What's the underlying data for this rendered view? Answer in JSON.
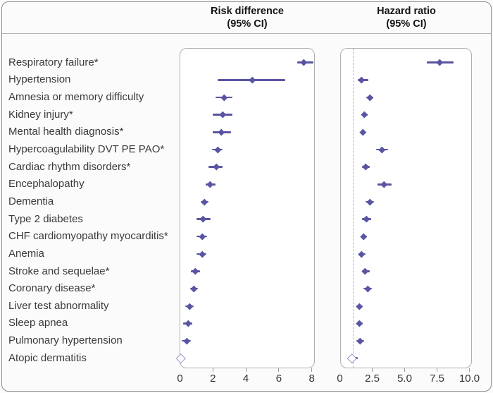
{
  "chart_data": {
    "type": "forest",
    "panels": [
      {
        "key": "rd",
        "title_line1": "Risk difference",
        "title_line2": "(95% CI)",
        "axis_ticks": [
          {
            "label": "0",
            "value": 0
          },
          {
            "label": "2",
            "value": 2
          },
          {
            "label": "4",
            "value": 4
          },
          {
            "label": "6",
            "value": 6
          },
          {
            "label": "8",
            "value": 8
          }
        ],
        "xlim": [
          0,
          8.2
        ],
        "reference_line": null
      },
      {
        "key": "hr",
        "title_line1": "Hazard ratio",
        "title_line2": "(95% CI)",
        "axis_ticks": [
          {
            "label": "0",
            "value": 0
          },
          {
            "label": "2.5",
            "value": 2.5
          },
          {
            "label": "5.0",
            "value": 5
          },
          {
            "label": "7.5",
            "value": 7.5
          },
          {
            "label": "10.0",
            "value": 10
          }
        ],
        "xlim": [
          0,
          10.2
        ],
        "reference_line": 1.0
      }
    ],
    "rows": [
      {
        "label": "Respiratory failure*",
        "rd": {
          "est": 7.5,
          "lo": 7.1,
          "hi": 8.1
        },
        "hr": {
          "est": 7.7,
          "lo": 6.7,
          "hi": 8.8
        },
        "open_marker": false
      },
      {
        "label": "Hypertension",
        "rd": {
          "est": 4.4,
          "lo": 2.3,
          "hi": 6.4
        },
        "hr": {
          "est": 1.7,
          "lo": 1.4,
          "hi": 2.2
        },
        "open_marker": false
      },
      {
        "label": "Amnesia or memory difficulty",
        "rd": {
          "est": 2.7,
          "lo": 2.15,
          "hi": 3.2
        },
        "hr": {
          "est": 2.3,
          "lo": 2.05,
          "hi": 2.6
        },
        "open_marker": false
      },
      {
        "label": "Kidney injury*",
        "rd": {
          "est": 2.6,
          "lo": 2.0,
          "hi": 3.2
        },
        "hr": {
          "est": 1.9,
          "lo": 1.7,
          "hi": 2.15
        },
        "open_marker": false
      },
      {
        "label": "Mental health diagnosis*",
        "rd": {
          "est": 2.5,
          "lo": 2.0,
          "hi": 3.1
        },
        "hr": {
          "est": 1.8,
          "lo": 1.6,
          "hi": 2.0
        },
        "open_marker": false
      },
      {
        "label": "Hypercoagulability DVT PE PAO*",
        "rd": {
          "est": 2.3,
          "lo": 1.95,
          "hi": 2.6
        },
        "hr": {
          "est": 3.25,
          "lo": 2.8,
          "hi": 3.75
        },
        "open_marker": false
      },
      {
        "label": "Cardiac rhythm disorders*",
        "rd": {
          "est": 2.2,
          "lo": 1.75,
          "hi": 2.6
        },
        "hr": {
          "est": 2.0,
          "lo": 1.7,
          "hi": 2.3
        },
        "open_marker": false
      },
      {
        "label": "Encephalopathy",
        "rd": {
          "est": 1.85,
          "lo": 1.55,
          "hi": 2.15
        },
        "hr": {
          "est": 3.4,
          "lo": 2.9,
          "hi": 4.0
        },
        "open_marker": false
      },
      {
        "label": "Dementia",
        "rd": {
          "est": 1.5,
          "lo": 1.25,
          "hi": 1.75
        },
        "hr": {
          "est": 2.35,
          "lo": 2.0,
          "hi": 2.65
        },
        "open_marker": false
      },
      {
        "label": "Type 2 diabetes",
        "rd": {
          "est": 1.4,
          "lo": 1.0,
          "hi": 1.85
        },
        "hr": {
          "est": 2.05,
          "lo": 1.7,
          "hi": 2.4
        },
        "open_marker": false
      },
      {
        "label": "CHF cardiomyopathy myocarditis*",
        "rd": {
          "est": 1.35,
          "lo": 1.0,
          "hi": 1.65
        },
        "hr": {
          "est": 1.85,
          "lo": 1.6,
          "hi": 2.1
        },
        "open_marker": false
      },
      {
        "label": "Anemia",
        "rd": {
          "est": 1.35,
          "lo": 1.0,
          "hi": 1.6
        },
        "hr": {
          "est": 1.7,
          "lo": 1.45,
          "hi": 2.0
        },
        "open_marker": false
      },
      {
        "label": "Stroke and sequelae*",
        "rd": {
          "est": 0.95,
          "lo": 0.65,
          "hi": 1.2
        },
        "hr": {
          "est": 1.95,
          "lo": 1.7,
          "hi": 2.3
        },
        "open_marker": false
      },
      {
        "label": "Coronary disease*",
        "rd": {
          "est": 0.85,
          "lo": 0.6,
          "hi": 1.1
        },
        "hr": {
          "est": 2.15,
          "lo": 1.8,
          "hi": 2.5
        },
        "open_marker": false
      },
      {
        "label": "Liver test abnormality",
        "rd": {
          "est": 0.6,
          "lo": 0.3,
          "hi": 0.85
        },
        "hr": {
          "est": 1.5,
          "lo": 1.25,
          "hi": 1.75
        },
        "open_marker": false
      },
      {
        "label": "Sleep apnea",
        "rd": {
          "est": 0.5,
          "lo": 0.2,
          "hi": 0.75
        },
        "hr": {
          "est": 1.5,
          "lo": 1.25,
          "hi": 1.75
        },
        "open_marker": false
      },
      {
        "label": "Pulmonary hypertension",
        "rd": {
          "est": 0.4,
          "lo": 0.1,
          "hi": 0.65
        },
        "hr": {
          "est": 1.55,
          "lo": 1.3,
          "hi": 1.85
        },
        "open_marker": false
      },
      {
        "label": "Atopic dermatitis",
        "rd": {
          "est": 0.03,
          "lo": 0.0,
          "hi": 0.25
        },
        "hr": {
          "est": 0.95,
          "lo": 0.7,
          "hi": 1.4
        },
        "open_marker": true
      }
    ],
    "colors": {
      "marker": "#5a55a2",
      "open_marker_border": "#9793c5",
      "open_marker_fill": "#ffffff",
      "reference_line": "#b8b8b8"
    },
    "legend_position": "none",
    "grid": false
  }
}
